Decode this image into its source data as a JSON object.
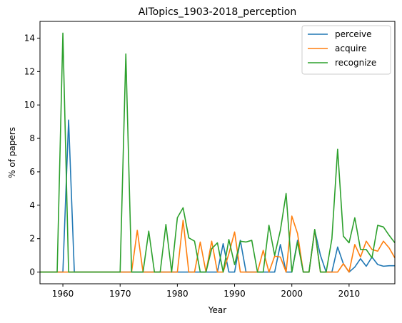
{
  "chart_data": {
    "type": "line",
    "title": "AITopics_1903-2018_perception",
    "xlabel": "Year",
    "ylabel": "% of papers",
    "xlim": [
      1956,
      2018
    ],
    "ylim": [
      -0.7,
      15.0
    ],
    "xticks": [
      1960,
      1970,
      1980,
      1990,
      2000,
      2010
    ],
    "yticks": [
      0,
      2,
      4,
      6,
      8,
      10,
      12,
      14
    ],
    "legend_position": "top-right",
    "grid": false,
    "series": [
      {
        "name": "perceive",
        "color": "#1f77b4",
        "points": [
          [
            1956,
            0
          ],
          [
            1960,
            0
          ],
          [
            1961,
            9.1
          ],
          [
            1962,
            0
          ],
          [
            1980,
            0
          ],
          [
            1981,
            0
          ],
          [
            1985,
            0
          ],
          [
            1986,
            0
          ],
          [
            1987,
            0
          ],
          [
            1988,
            1.7
          ],
          [
            1989,
            0
          ],
          [
            1990,
            0
          ],
          [
            1991,
            1.9
          ],
          [
            1992,
            0
          ],
          [
            1996,
            0
          ],
          [
            1997,
            0
          ],
          [
            1998,
            1.65
          ],
          [
            1999,
            0
          ],
          [
            2000,
            0
          ],
          [
            2001,
            1.9
          ],
          [
            2002,
            0
          ],
          [
            2003,
            0
          ],
          [
            2004,
            2.5
          ],
          [
            2005,
            1.0
          ],
          [
            2006,
            0
          ],
          [
            2007,
            0
          ],
          [
            2008,
            1.5
          ],
          [
            2009,
            0.5
          ],
          [
            2010,
            0
          ],
          [
            2011,
            0.3
          ],
          [
            2012,
            0.8
          ],
          [
            2013,
            0.35
          ],
          [
            2014,
            0.9
          ],
          [
            2015,
            0.45
          ],
          [
            2016,
            0.35
          ],
          [
            2017,
            0.38
          ],
          [
            2018,
            0.38
          ]
        ]
      },
      {
        "name": "acquire",
        "color": "#ff7f0e",
        "points": [
          [
            1956,
            0
          ],
          [
            1972,
            0
          ],
          [
            1973,
            2.5
          ],
          [
            1974,
            0
          ],
          [
            1980,
            0
          ],
          [
            1981,
            3.1
          ],
          [
            1982,
            0
          ],
          [
            1983,
            0
          ],
          [
            1984,
            1.8
          ],
          [
            1985,
            0
          ],
          [
            1986,
            1.85
          ],
          [
            1987,
            0
          ],
          [
            1988,
            0
          ],
          [
            1989,
            1.1
          ],
          [
            1990,
            2.4
          ],
          [
            1991,
            0
          ],
          [
            1994,
            0
          ],
          [
            1995,
            1.3
          ],
          [
            1996,
            0
          ],
          [
            1997,
            0.95
          ],
          [
            1998,
            0.9
          ],
          [
            1999,
            0
          ],
          [
            2000,
            3.35
          ],
          [
            2001,
            2.3
          ],
          [
            2002,
            0
          ],
          [
            2003,
            0
          ],
          [
            2004,
            2.5
          ],
          [
            2005,
            0
          ],
          [
            2008,
            0
          ],
          [
            2009,
            0.5
          ],
          [
            2010,
            0
          ],
          [
            2011,
            1.65
          ],
          [
            2012,
            0.9
          ],
          [
            2013,
            1.85
          ],
          [
            2014,
            1.35
          ],
          [
            2015,
            1.25
          ],
          [
            2016,
            1.85
          ],
          [
            2017,
            1.45
          ],
          [
            2018,
            0.85
          ]
        ]
      },
      {
        "name": "recognize",
        "color": "#2ca02c",
        "points": [
          [
            1956,
            0
          ],
          [
            1959,
            0
          ],
          [
            1960,
            14.3
          ],
          [
            1961,
            0
          ],
          [
            1970,
            0
          ],
          [
            1971,
            13.05
          ],
          [
            1972,
            0
          ],
          [
            1974,
            0
          ],
          [
            1975,
            2.45
          ],
          [
            1976,
            0
          ],
          [
            1977,
            0
          ],
          [
            1978,
            2.85
          ],
          [
            1979,
            0
          ],
          [
            1980,
            3.25
          ],
          [
            1981,
            3.85
          ],
          [
            1982,
            2.05
          ],
          [
            1983,
            1.85
          ],
          [
            1984,
            0
          ],
          [
            1985,
            0
          ],
          [
            1986,
            1.4
          ],
          [
            1987,
            1.75
          ],
          [
            1988,
            0
          ],
          [
            1989,
            1.95
          ],
          [
            1990,
            0.45
          ],
          [
            1991,
            1.85
          ],
          [
            1992,
            1.8
          ],
          [
            1993,
            1.9
          ],
          [
            1994,
            0
          ],
          [
            1995,
            0
          ],
          [
            1996,
            2.8
          ],
          [
            1997,
            1.0
          ],
          [
            1998,
            2.5
          ],
          [
            1999,
            4.7
          ],
          [
            2000,
            0
          ],
          [
            2001,
            1.8
          ],
          [
            2002,
            0
          ],
          [
            2003,
            0
          ],
          [
            2004,
            2.55
          ],
          [
            2005,
            0
          ],
          [
            2006,
            0
          ],
          [
            2007,
            2.0
          ],
          [
            2008,
            7.35
          ],
          [
            2009,
            2.15
          ],
          [
            2010,
            1.75
          ],
          [
            2011,
            3.25
          ],
          [
            2012,
            1.35
          ],
          [
            2013,
            1.35
          ],
          [
            2014,
            0.85
          ],
          [
            2015,
            2.8
          ],
          [
            2016,
            2.7
          ],
          [
            2017,
            2.2
          ],
          [
            2018,
            1.75
          ]
        ]
      }
    ]
  }
}
